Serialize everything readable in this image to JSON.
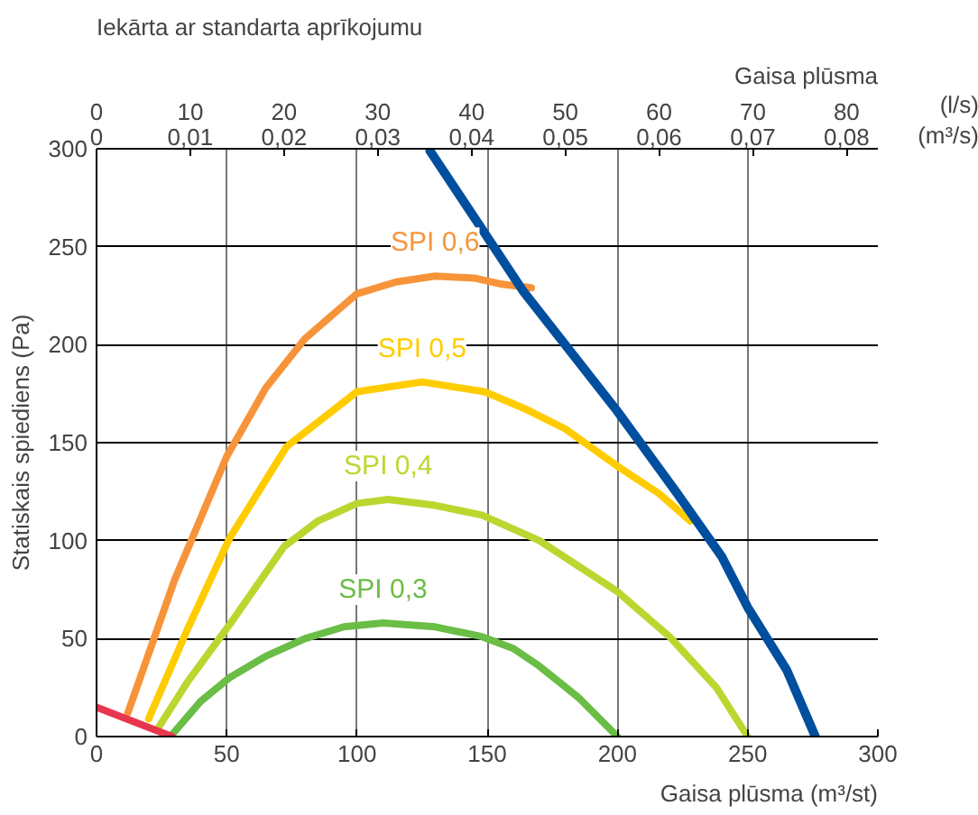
{
  "chart_data": {
    "type": "line",
    "title": "Iekārta ar standarta aprīkojumu",
    "xlabel": "Gaisa plūsma (m³/st)",
    "ylabel": "Statiskais spiediens (Pa)",
    "x2label": "Gaisa plūsma",
    "xlim": [
      0,
      300
    ],
    "xticks": [
      0,
      50,
      100,
      150,
      200,
      250,
      300
    ],
    "ylim": [
      0,
      300
    ],
    "yticks": [
      0,
      50,
      100,
      150,
      200,
      250,
      300
    ],
    "x2lim": [
      0,
      83.333
    ],
    "x2ticks": [
      0,
      10,
      20,
      30,
      40,
      50,
      60,
      70,
      80
    ],
    "annotations": [
      "(l/s)",
      "(m³/s)",
      "0",
      "0,01",
      "0,02",
      "0,03",
      "0,04",
      "0,05",
      "0,06",
      "0,07",
      "0,08"
    ],
    "grid": true,
    "marker": "none",
    "line_style": "solid",
    "series": [
      {
        "name": "SPI 0,6",
        "color": "#f7943a",
        "x": [
          12,
          30,
          50,
          65,
          80,
          100,
          115,
          130,
          145,
          155,
          167
        ],
        "values": [
          12,
          80,
          143,
          178,
          203,
          226,
          232,
          235,
          234,
          231,
          229
        ]
      },
      {
        "name": "SPI 0,5",
        "color": "#ffcc00",
        "x": [
          20,
          35,
          51,
          73,
          100,
          125,
          149,
          165,
          180,
          200,
          216,
          228
        ],
        "values": [
          9,
          55,
          101,
          148,
          176,
          181,
          176,
          167,
          157,
          138,
          124,
          110
        ]
      },
      {
        "name": "SPI 0,4",
        "color": "#bcd630",
        "x": [
          24,
          35,
          51,
          72,
          85,
          100,
          112,
          130,
          148,
          170,
          200,
          220,
          238,
          250
        ],
        "values": [
          5,
          28,
          57,
          97,
          110,
          119,
          121,
          118,
          113,
          100,
          74,
          51,
          25,
          0
        ]
      },
      {
        "name": "SPI 0,3",
        "color": "#6abd45",
        "x": [
          29,
          40,
          51,
          65,
          80,
          95,
          110,
          130,
          148,
          160,
          170,
          185,
          200
        ],
        "values": [
          1,
          18,
          30,
          41,
          50,
          56,
          58,
          56,
          51,
          45,
          36,
          20,
          0
        ]
      },
      {
        "color": "#004f9f",
        "x": [
          128,
          164,
          200,
          223,
          240,
          250,
          265,
          276
        ],
        "values": [
          299,
          227,
          166,
          124,
          92,
          66,
          34,
          0
        ]
      },
      {
        "color": "#e8364e",
        "x": [
          0,
          29
        ],
        "values": [
          15,
          0
        ]
      }
    ]
  }
}
